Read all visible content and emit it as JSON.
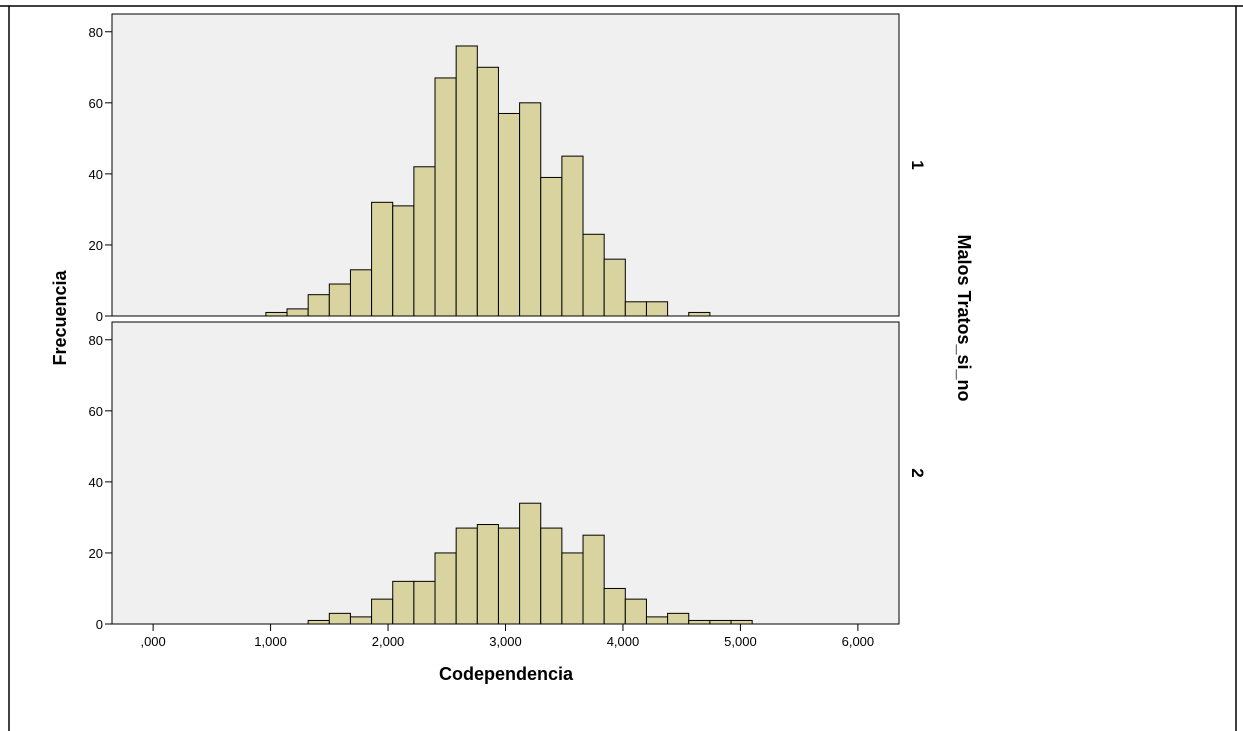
{
  "chart_data": {
    "type": "bar",
    "subtype": "histogram-panels",
    "xlabel": "Codependencia",
    "ylabel": "Frecuencia",
    "panel_variable": "Malos Tratos_si_no",
    "xlim": [
      -0.35,
      6.35
    ],
    "xticks": [
      0,
      1,
      2,
      3,
      4,
      5,
      6
    ],
    "xtick_labels": [
      ",000",
      "1,000",
      "2,000",
      "3,000",
      "4,000",
      "5,000",
      "6,000"
    ],
    "ylim": [
      0,
      85
    ],
    "yticks": [
      0,
      20,
      40,
      60,
      80
    ],
    "ytick_labels": [
      "0",
      "20",
      "40",
      "60",
      "80"
    ],
    "bin_width": 0.18,
    "bin_start": 0.96,
    "bar_color": "#d9d3a0",
    "panel_background": "#f0f0f0",
    "grid": false,
    "panels": [
      {
        "label": "1",
        "values": [
          1,
          2,
          6,
          9,
          13,
          32,
          31,
          42,
          67,
          76,
          70,
          57,
          60,
          39,
          45,
          23,
          16,
          4,
          4,
          0,
          1
        ]
      },
      {
        "label": "2",
        "values": [
          0,
          0,
          1,
          3,
          2,
          7,
          12,
          12,
          20,
          27,
          28,
          27,
          34,
          27,
          20,
          25,
          10,
          7,
          2,
          3,
          1,
          1,
          1
        ]
      }
    ]
  }
}
